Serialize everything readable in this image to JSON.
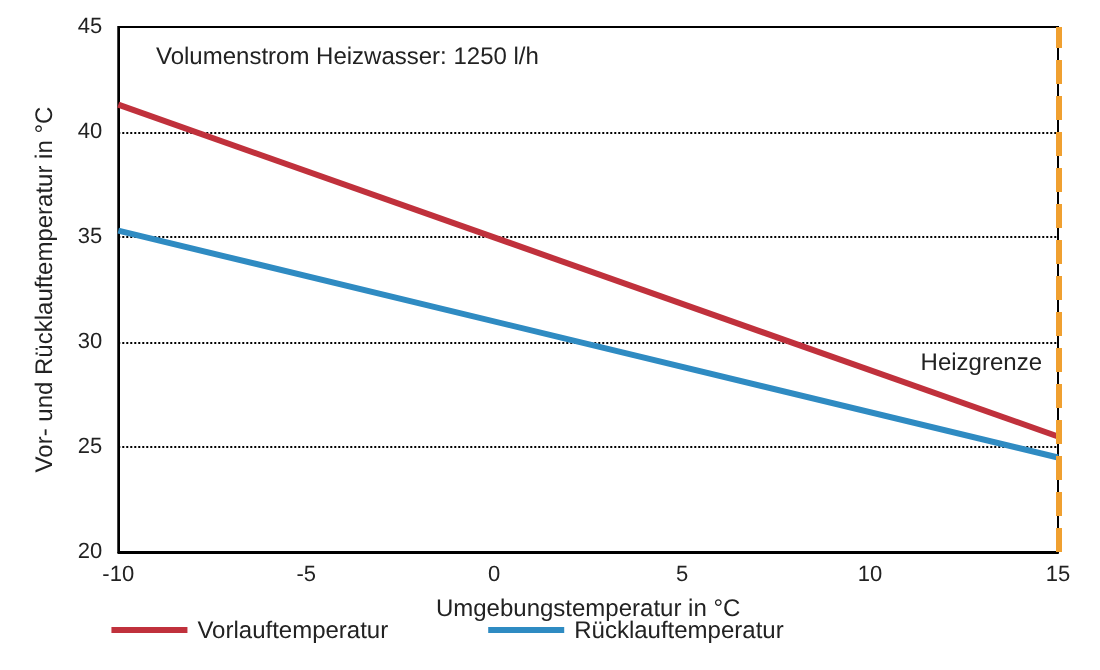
{
  "chart_data": {
    "type": "line",
    "xlabel": "Umgebungstemperatur in °C",
    "ylabel": "Vor- und Rücklauftemperatur in °C",
    "x": [
      -10,
      15
    ],
    "series": [
      {
        "name": "Vorlauftemperatur",
        "color": "#c0313c",
        "values": [
          41.3,
          25.5
        ]
      },
      {
        "name": "Rücklauftemperatur",
        "color": "#2f8bc2",
        "values": [
          35.3,
          24.5
        ]
      }
    ],
    "xlim": [
      -10,
      15
    ],
    "xticks": [
      -10,
      -5,
      0,
      5,
      10,
      15
    ],
    "ylim": [
      20,
      45
    ],
    "yticks": [
      20,
      25,
      30,
      35,
      40,
      45
    ],
    "grid": "y",
    "legend": "bottom",
    "marker": "none",
    "line_style": "solid",
    "annotations": [
      "Volumenstrom Heizwasser: 1250 l/h"
    ],
    "ref_lines": [
      {
        "axis": "x",
        "value": 15,
        "label": "Heizgrenze",
        "color": "#f0a030",
        "line_style": "dashed"
      }
    ]
  }
}
